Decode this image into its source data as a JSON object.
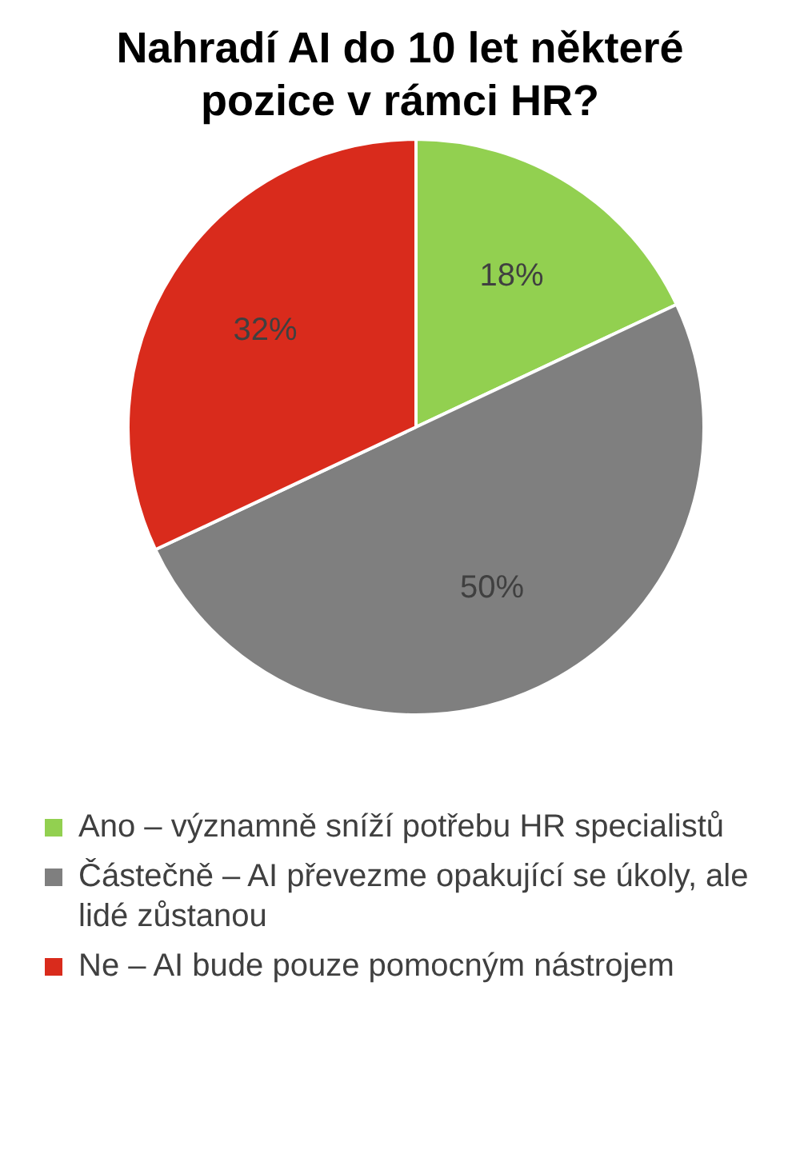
{
  "chart_data": {
    "type": "pie",
    "title": "Nahradí AI do 10 let některé pozice v rámci HR?",
    "categories": [
      "Ano – významně sníží potřebu HR specialistů",
      "Částečně – AI převezme opakující se úkoly, ale lidé zůstanou",
      "Ne – AI bude pouze pomocným nástrojem"
    ],
    "values": [
      18,
      50,
      32
    ],
    "value_labels": [
      "18%",
      "50%",
      "32%"
    ],
    "colors": [
      "#92d050",
      "#7f7f7f",
      "#d92b1c"
    ],
    "legend": "bottom"
  }
}
